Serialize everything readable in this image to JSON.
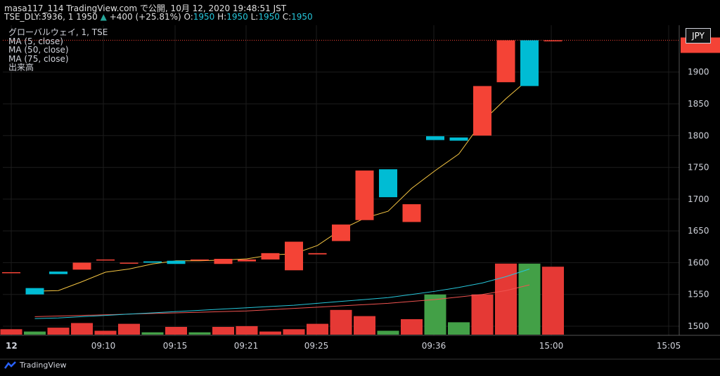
{
  "header": {
    "line1": "masa117_114 TradingView.com で公開, 10月 12, 2020 19:48:51 JST",
    "symbol": "TSE_DLY:3936, 1",
    "price": "1950",
    "arrow": "▲",
    "change": "+400 (+25.81%)",
    "o_label": "O:",
    "o_val": "1950",
    "h_label": "H:",
    "h_val": "1950",
    "l_label": "L:",
    "l_val": "1950",
    "c_label": "C:",
    "c_val": "1950"
  },
  "legend": {
    "title": "グローバルウェイ, 1, TSE",
    "ma5": "MA (5, close)",
    "ma50": "MA (50, close)",
    "ma75": "MA (75, close)",
    "volume": "出来高"
  },
  "currency": "JPY",
  "brand": "TradingView",
  "colors": {
    "up": "#00bcd4",
    "down": "#f44336",
    "vol_up": "#43a047",
    "vol_down": "#e53935",
    "ma5": "#f5c542",
    "ma50": "#26c6da",
    "ma75": "#ef5350",
    "grid": "#1c1c1c"
  },
  "chart_data": {
    "type": "candlestick",
    "x_ticks": [
      "12",
      "09:10",
      "09:15",
      "09:21",
      "09:25",
      "09:36",
      "15:00",
      "15:05"
    ],
    "y_ticks": [
      1500,
      1550,
      1600,
      1650,
      1700,
      1750,
      1800,
      1850,
      1900
    ],
    "ylim": [
      1488,
      1955
    ],
    "candles": [
      {
        "open": 1585,
        "close": 1585
      },
      {
        "open": 1550,
        "close": 1560
      },
      {
        "open": 1582,
        "close": 1586
      },
      {
        "open": 1600,
        "close": 1589
      },
      {
        "open": 1605,
        "close": 1605
      },
      {
        "open": 1600,
        "close": 1600
      },
      {
        "open": 1600,
        "close": 1602
      },
      {
        "open": 1598,
        "close": 1603
      },
      {
        "open": 1605,
        "close": 1605
      },
      {
        "open": 1606,
        "close": 1598
      },
      {
        "open": 1605,
        "close": 1602
      },
      {
        "open": 1615,
        "close": 1605
      },
      {
        "open": 1633,
        "close": 1588
      },
      {
        "open": 1615,
        "close": 1613
      },
      {
        "open": 1660,
        "close": 1634
      },
      {
        "open": 1745,
        "close": 1667
      },
      {
        "open": 1703,
        "close": 1747
      },
      {
        "open": 1692,
        "close": 1664
      },
      {
        "open": 1793,
        "close": 1799
      },
      {
        "open": 1792,
        "close": 1797
      },
      {
        "open": 1878,
        "close": 1800
      },
      {
        "open": 1950,
        "close": 1884
      },
      {
        "open": 1878,
        "close": 1950
      },
      {
        "open": 1950,
        "close": 1950
      }
    ],
    "volume_up": [
      false,
      true,
      false,
      false,
      false,
      false,
      true,
      false,
      true,
      false,
      false,
      false,
      false,
      false,
      false,
      false,
      true,
      false,
      true,
      true,
      false,
      false,
      true,
      false
    ],
    "volume": [
      7,
      4,
      9,
      15,
      5,
      14,
      3,
      10,
      3,
      10,
      11,
      4,
      7,
      14,
      32,
      24,
      5,
      20,
      52,
      16,
      52,
      92,
      92,
      88
    ],
    "volume_max": 100,
    "ma5": [
      null,
      1555,
      1556,
      1570,
      1585,
      1590,
      1598,
      1603,
      1603,
      1604,
      1606,
      1612,
      1614,
      1627,
      1652,
      1670,
      1681,
      1717,
      1745,
      1771,
      1822,
      1858,
      1890,
      null
    ],
    "ma50": [
      null,
      1512,
      1513,
      1515,
      1517,
      1519,
      1521,
      1523,
      1525,
      1527,
      1529,
      1531,
      1533,
      1536,
      1539,
      1542,
      1545,
      1550,
      1555,
      1561,
      1568,
      1578,
      1590,
      null
    ],
    "ma75": [
      null,
      1515,
      1516,
      1517,
      1518,
      1519,
      1520,
      1521,
      1522,
      1523,
      1524,
      1526,
      1528,
      1530,
      1532,
      1534,
      1536,
      1539,
      1542,
      1546,
      1550,
      1556,
      1565,
      null
    ]
  }
}
